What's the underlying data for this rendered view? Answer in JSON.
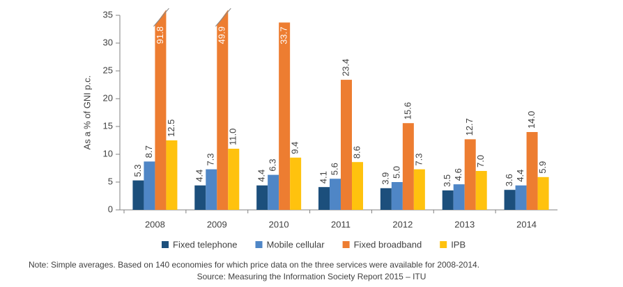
{
  "chart_data": {
    "type": "bar",
    "ylabel": "As a % of GNI p.c.",
    "categories": [
      "2008",
      "2009",
      "2010",
      "2011",
      "2012",
      "2013",
      "2014"
    ],
    "series": [
      {
        "name": "Fixed telephone",
        "color": "#1c4f7c",
        "values": [
          5.3,
          4.4,
          4.4,
          4.1,
          3.9,
          3.5,
          3.6
        ],
        "value_labels": [
          "5.3",
          "4.4",
          "4.4",
          "4.1",
          "3.9",
          "3.5",
          "3.6"
        ]
      },
      {
        "name": "Mobile cellular",
        "color": "#4f86c6",
        "values": [
          8.7,
          7.3,
          6.3,
          5.6,
          5.0,
          4.6,
          4.4
        ],
        "value_labels": [
          "8.7",
          "7.3",
          "6.3",
          "5.6",
          "5.0",
          "4.6",
          "4.4"
        ]
      },
      {
        "name": "Fixed broadband",
        "color": "#ed7d31",
        "values": [
          91.8,
          49.9,
          33.7,
          23.4,
          15.6,
          12.7,
          14.0
        ],
        "value_labels": [
          "91.8",
          "49.9",
          "33.7",
          "23.4",
          "15.6",
          "12.7",
          "14.0"
        ]
      },
      {
        "name": "IPB",
        "color": "#ffc20e",
        "values": [
          12.5,
          11.0,
          9.4,
          8.6,
          7.3,
          7.0,
          5.9
        ],
        "value_labels": [
          "12.5",
          "11.0",
          "9.4",
          "8.6",
          "7.3",
          "7.0",
          "5.9"
        ]
      }
    ],
    "ylim": [
      0,
      35
    ],
    "yticks": [
      0,
      5,
      10,
      15,
      20,
      25,
      30,
      35
    ],
    "grid": false,
    "legend": "bottom",
    "note": "Note: Simple averages. Based on 140 economies for which price data on the three services were available for 2008-2014.",
    "source": "Source: Measuring the Information Society Report 2015 – ITU"
  }
}
